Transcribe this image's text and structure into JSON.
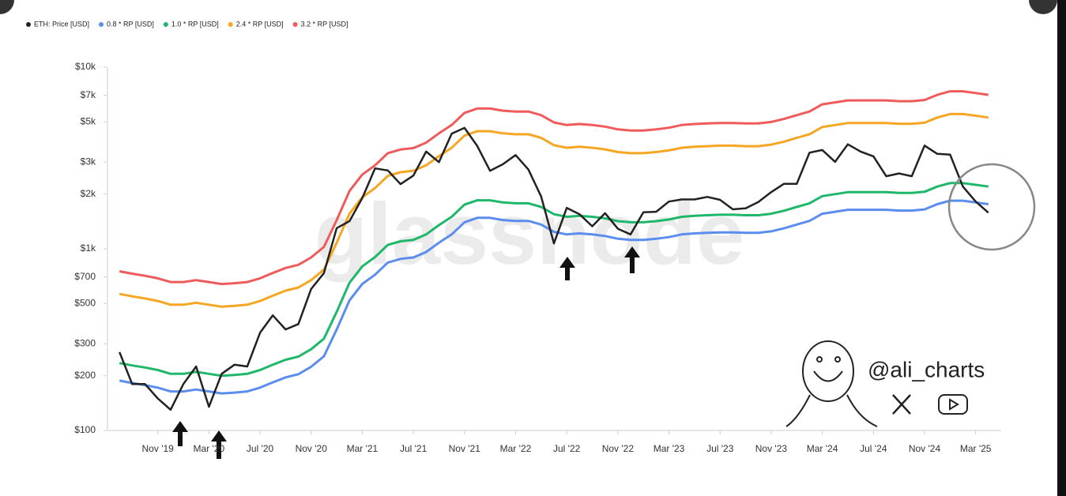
{
  "chart_data": {
    "type": "line",
    "watermark": "glassnode",
    "handle": "@ali_charts",
    "log_scale": true,
    "grid": false,
    "legend": "top-left",
    "x": [
      "2019-08",
      "2019-09",
      "2019-10",
      "2019-11",
      "2019-12",
      "2020-01",
      "2020-02",
      "2020-03",
      "2020-04",
      "2020-05",
      "2020-06",
      "2020-07",
      "2020-08",
      "2020-09",
      "2020-10",
      "2020-11",
      "2020-12",
      "2021-01",
      "2021-02",
      "2021-03",
      "2021-04",
      "2021-05",
      "2021-06",
      "2021-07",
      "2021-08",
      "2021-09",
      "2021-10",
      "2021-11",
      "2021-12",
      "2022-01",
      "2022-02",
      "2022-03",
      "2022-04",
      "2022-05",
      "2022-06",
      "2022-07",
      "2022-08",
      "2022-09",
      "2022-10",
      "2022-11",
      "2022-12",
      "2023-01",
      "2023-02",
      "2023-03",
      "2023-04",
      "2023-05",
      "2023-06",
      "2023-07",
      "2023-08",
      "2023-09",
      "2023-10",
      "2023-11",
      "2023-12",
      "2024-01",
      "2024-02",
      "2024-03",
      "2024-04",
      "2024-05",
      "2024-06",
      "2024-07",
      "2024-08",
      "2024-09",
      "2024-10",
      "2024-11",
      "2024-12",
      "2025-01",
      "2025-02",
      "2025-03",
      "2025-04"
    ],
    "xlim": [
      "2019-07",
      "2025-05"
    ],
    "xticks": [
      {
        "value": "2019-11",
        "label": "Nov '19"
      },
      {
        "value": "2020-03",
        "label": "Mar '20"
      },
      {
        "value": "2020-07",
        "label": "Jul '20"
      },
      {
        "value": "2020-11",
        "label": "Nov '20"
      },
      {
        "value": "2021-03",
        "label": "Mar '21"
      },
      {
        "value": "2021-07",
        "label": "Jul '21"
      },
      {
        "value": "2021-11",
        "label": "Nov '21"
      },
      {
        "value": "2022-03",
        "label": "Mar '22"
      },
      {
        "value": "2022-07",
        "label": "Jul '22"
      },
      {
        "value": "2022-11",
        "label": "Nov '22"
      },
      {
        "value": "2023-03",
        "label": "Mar '23"
      },
      {
        "value": "2023-07",
        "label": "Jul '23"
      },
      {
        "value": "2023-11",
        "label": "Nov '23"
      },
      {
        "value": "2024-03",
        "label": "Mar '24"
      },
      {
        "value": "2024-07",
        "label": "Jul '24"
      },
      {
        "value": "2024-11",
        "label": "Nov '24"
      },
      {
        "value": "2025-03",
        "label": "Mar '25"
      }
    ],
    "ylim": [
      100,
      10000
    ],
    "yticks": [
      {
        "value": 100,
        "label": "$100"
      },
      {
        "value": 200,
        "label": "$200"
      },
      {
        "value": 300,
        "label": "$300"
      },
      {
        "value": 500,
        "label": "$500"
      },
      {
        "value": 700,
        "label": "$700"
      },
      {
        "value": 1000,
        "label": "$1k"
      },
      {
        "value": 2000,
        "label": "$2k"
      },
      {
        "value": 3000,
        "label": "$3k"
      },
      {
        "value": 5000,
        "label": "$5k"
      },
      {
        "value": 7000,
        "label": "$7k"
      },
      {
        "value": 10000,
        "label": "$10k"
      }
    ],
    "series": [
      {
        "name": "ETH: Price [USD]",
        "color": "#222222",
        "values": [
          270,
          180,
          180,
          150,
          130,
          180,
          225,
          135,
          205,
          230,
          225,
          345,
          430,
          360,
          385,
          600,
          735,
          1300,
          1420,
          1900,
          2770,
          2700,
          2270,
          2530,
          3430,
          3000,
          4300,
          4630,
          3680,
          2690,
          2920,
          3280,
          2730,
          1940,
          1070,
          1680,
          1550,
          1330,
          1570,
          1290,
          1200,
          1590,
          1600,
          1820,
          1870,
          1870,
          1930,
          1860,
          1650,
          1670,
          1810,
          2050,
          2280,
          2280,
          3380,
          3500,
          3010,
          3760,
          3430,
          3230,
          2510,
          2600,
          2510,
          3700,
          3330,
          3300,
          2200,
          1820,
          1580
        ]
      },
      {
        "name": "0.8 * RP [USD]",
        "color": "#5b8def",
        "values": [
          188,
          182.4,
          177.6,
          172,
          164,
          164,
          168,
          164,
          160,
          161.6,
          164,
          172,
          184,
          196,
          204,
          224,
          256,
          360,
          520,
          640,
          720,
          840,
          880,
          896,
          960,
          1080,
          1200,
          1400,
          1480,
          1480,
          1440,
          1424,
          1424,
          1360,
          1240,
          1200,
          1216,
          1200,
          1176,
          1136,
          1120,
          1120,
          1136,
          1160,
          1200,
          1216,
          1224,
          1232,
          1232,
          1224,
          1224,
          1248,
          1296,
          1360,
          1424,
          1560,
          1600,
          1640,
          1640,
          1640,
          1640,
          1624,
          1624,
          1648,
          1760,
          1840,
          1840,
          1800,
          1760
        ]
      },
      {
        "name": "1.0 * RP [USD]",
        "color": "#1fb86a",
        "values": [
          235,
          228,
          222,
          215,
          205,
          205,
          210,
          205,
          200,
          202,
          205,
          215,
          230,
          245,
          255,
          280,
          320,
          450,
          650,
          800,
          900,
          1050,
          1100,
          1120,
          1200,
          1350,
          1500,
          1750,
          1850,
          1850,
          1800,
          1780,
          1780,
          1700,
          1550,
          1500,
          1520,
          1500,
          1470,
          1420,
          1400,
          1400,
          1420,
          1450,
          1500,
          1520,
          1530,
          1540,
          1540,
          1530,
          1530,
          1560,
          1620,
          1700,
          1780,
          1950,
          2000,
          2050,
          2050,
          2050,
          2050,
          2030,
          2030,
          2060,
          2200,
          2300,
          2300,
          2250,
          2200
        ]
      },
      {
        "name": "2.4 * RP [USD]",
        "color": "#f5a623",
        "values": [
          564,
          547.2,
          532.8,
          516,
          492,
          492,
          504,
          492,
          480,
          484.8,
          492,
          516,
          552,
          588,
          612,
          672,
          768,
          1080,
          1560,
          1920,
          2160,
          2520,
          2640,
          2688,
          2880,
          3240,
          3600,
          4200,
          4440,
          4440,
          4320,
          4272,
          4272,
          4080,
          3720,
          3600,
          3648,
          3600,
          3528,
          3408,
          3360,
          3360,
          3408,
          3480,
          3600,
          3648,
          3672,
          3696,
          3696,
          3672,
          3672,
          3744,
          3888,
          4080,
          4272,
          4680,
          4800,
          4920,
          4920,
          4920,
          4920,
          4872,
          4872,
          4944,
          5280,
          5520,
          5520,
          5400,
          5280
        ]
      },
      {
        "name": "3.2 * RP [USD]",
        "color": "#ef5a5a",
        "values": [
          752,
          729.6,
          710.4,
          688,
          656,
          656,
          672,
          656,
          640,
          646.4,
          656,
          688,
          736,
          784,
          816,
          896,
          1024,
          1440,
          2080,
          2560,
          2880,
          3360,
          3520,
          3584,
          3840,
          4320,
          4800,
          5600,
          5920,
          5920,
          5760,
          5696,
          5696,
          5440,
          4960,
          4800,
          4864,
          4800,
          4704,
          4544,
          4480,
          4480,
          4544,
          4640,
          4800,
          4864,
          4896,
          4928,
          4928,
          4896,
          4896,
          4992,
          5184,
          5440,
          5696,
          6240,
          6400,
          6560,
          6560,
          6560,
          6560,
          6496,
          6496,
          6592,
          7040,
          7360,
          7360,
          7200,
          7040
        ]
      }
    ]
  }
}
